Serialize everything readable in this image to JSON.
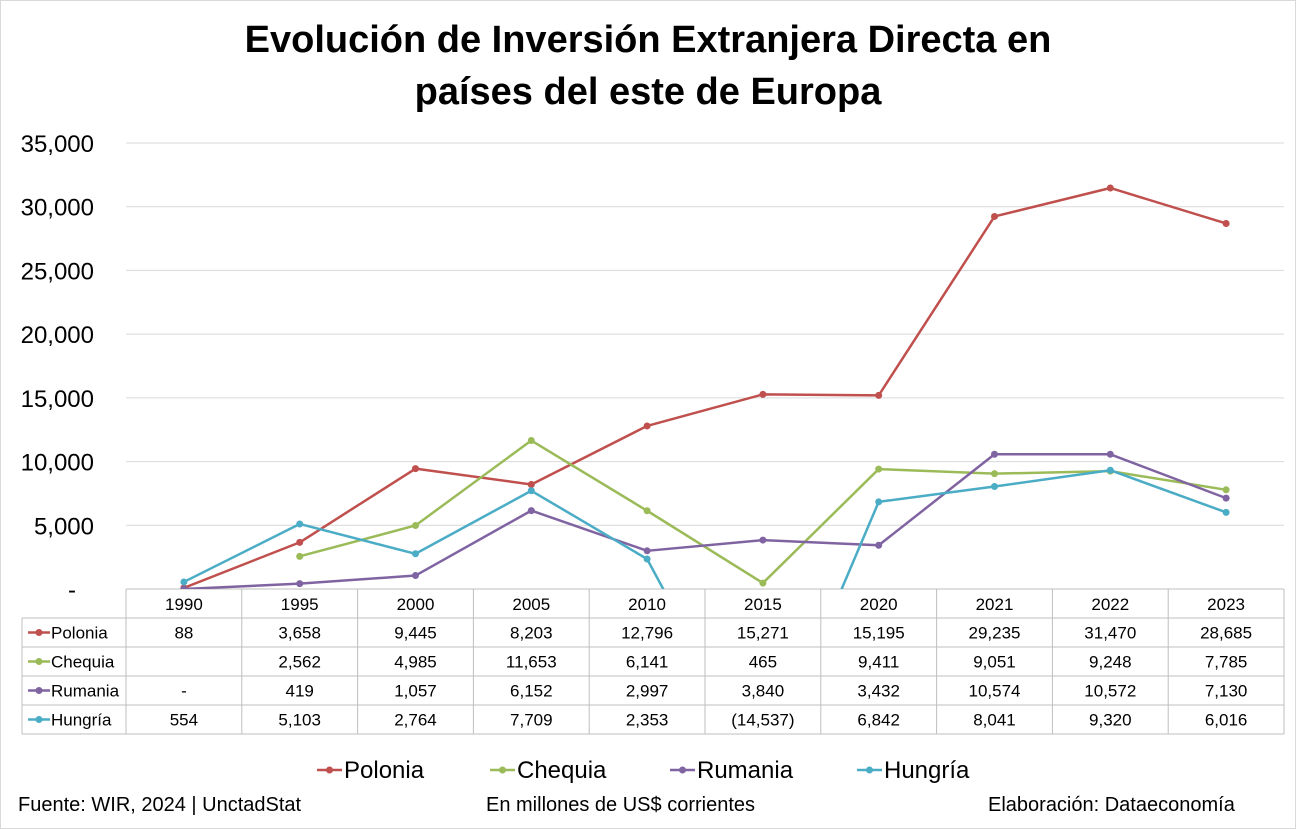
{
  "chart_data": {
    "type": "line",
    "title_line1": "Evolución de Inversión Extranjera Directa en",
    "title_line2": "países del este de Europa",
    "categories": [
      "1990",
      "1995",
      "2000",
      "2005",
      "2010",
      "2015",
      "2020",
      "2021",
      "2022",
      "2023"
    ],
    "ylim": [
      0,
      35000
    ],
    "yticks": [
      "-",
      "5,000",
      "10,000",
      "15,000",
      "20,000",
      "25,000",
      "30,000",
      "35,000"
    ],
    "ytick_values": [
      0,
      5000,
      10000,
      15000,
      20000,
      25000,
      30000,
      35000
    ],
    "grid": true,
    "legend_position": "bottom",
    "series": [
      {
        "name": "Polonia",
        "color": "#c0504d",
        "values": [
          88,
          3658,
          9445,
          8203,
          12796,
          15271,
          15195,
          29235,
          31470,
          28685
        ],
        "labels": [
          "88",
          "3,658",
          "9,445",
          "8,203",
          "12,796",
          "15,271",
          "15,195",
          "29,235",
          "31,470",
          "28,685"
        ]
      },
      {
        "name": "Chequia",
        "color": "#9bbb59",
        "values": [
          null,
          2562,
          4985,
          11653,
          6141,
          465,
          9411,
          9051,
          9248,
          7785
        ],
        "labels": [
          "",
          "2,562",
          "4,985",
          "11,653",
          "6,141",
          "465",
          "9,411",
          "9,051",
          "9,248",
          "7,785"
        ]
      },
      {
        "name": "Rumania",
        "color": "#8064a2",
        "values": [
          0,
          419,
          1057,
          6152,
          2997,
          3840,
          3432,
          10574,
          10572,
          7130
        ],
        "labels": [
          "-",
          "419",
          "1,057",
          "6,152",
          "2,997",
          "3,840",
          "3,432",
          "10,574",
          "10,572",
          "7,130"
        ]
      },
      {
        "name": "Hungría",
        "color": "#4bacc6",
        "values": [
          554,
          5103,
          2764,
          7709,
          2353,
          -14537,
          6842,
          8041,
          9320,
          6016
        ],
        "labels": [
          "554",
          "5,103",
          "2,764",
          "7,709",
          "2,353",
          "(14,537)",
          "6,842",
          "8,041",
          "9,320",
          "6,016"
        ]
      }
    ]
  },
  "footer": {
    "source": "Fuente: WIR, 2024 | UnctadStat",
    "units": "En millones de US$ corrientes",
    "credit": "Elaboración: Dataeconomía"
  }
}
